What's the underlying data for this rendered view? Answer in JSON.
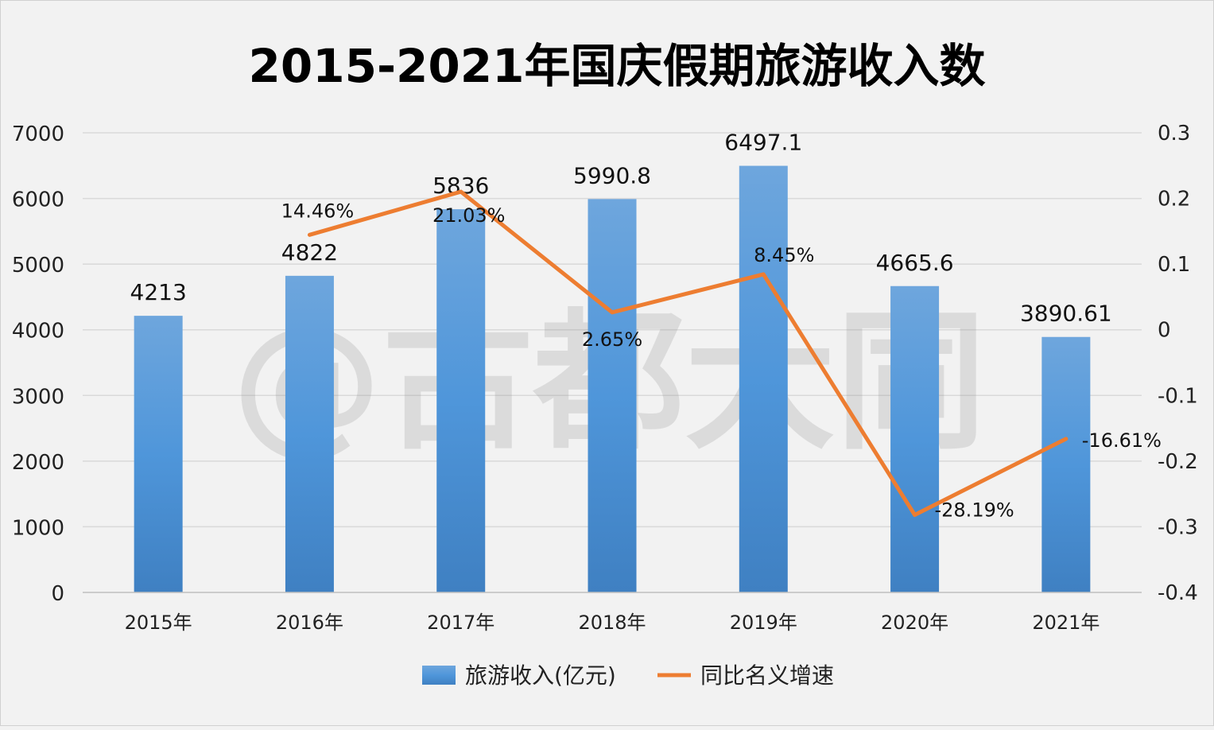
{
  "chart_data": {
    "type": "bar",
    "title": "2015-2021年国庆假期旅游收入数",
    "categories": [
      "2015年",
      "2016年",
      "2017年",
      "2018年",
      "2019年",
      "2020年",
      "2021年"
    ],
    "series": [
      {
        "name": "旅游收入(亿元)",
        "type": "bar",
        "axis": "left",
        "values": [
          4213,
          4822,
          5836,
          5990.8,
          6497.1,
          4665.6,
          3890.61
        ],
        "labels": [
          "4213",
          "4822",
          "5836",
          "5990.8",
          "6497.1",
          "4665.6",
          "3890.61"
        ],
        "color": "#5b9bd5"
      },
      {
        "name": "同比名义增速",
        "type": "line",
        "axis": "right",
        "values": [
          null,
          0.1446,
          0.2103,
          0.0265,
          0.0845,
          -0.2819,
          -0.1661
        ],
        "labels": [
          "",
          "14.46%",
          "21.03%",
          "2.65%",
          "8.45%",
          "-28.19%",
          "-16.61%"
        ],
        "color": "#ed7d31"
      }
    ],
    "y_left": {
      "min": 0,
      "max": 7000,
      "ticks": [
        0,
        1000,
        2000,
        3000,
        4000,
        5000,
        6000,
        7000
      ],
      "tick_labels": [
        "0",
        "1000",
        "2000",
        "3000",
        "4000",
        "5000",
        "6000",
        "7000"
      ]
    },
    "y_right": {
      "min": -0.4,
      "max": 0.3,
      "ticks": [
        -0.4,
        -0.3,
        -0.2,
        -0.1,
        0,
        0.1,
        0.2,
        0.3
      ],
      "tick_labels": [
        "-0.4",
        "-0.3",
        "-0.2",
        "-0.1",
        "0",
        "0.1",
        "0.2",
        "0.3"
      ]
    },
    "grid": true,
    "legend_position": "bottom"
  },
  "watermark": "@古都大同"
}
